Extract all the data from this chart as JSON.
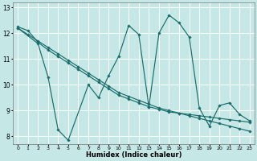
{
  "xlabel": "Humidex (Indice chaleur)",
  "bg_color": "#c5e8e6",
  "line_color": "#1a6b6a",
  "grid_color": "#ffffff",
  "xlim": [
    -0.5,
    23.5
  ],
  "ylim": [
    7.7,
    13.2
  ],
  "yticks": [
    8,
    9,
    10,
    11,
    12,
    13
  ],
  "xticks": [
    0,
    1,
    2,
    3,
    4,
    5,
    6,
    7,
    8,
    9,
    10,
    11,
    12,
    13,
    14,
    15,
    16,
    17,
    18,
    19,
    20,
    21,
    22,
    23
  ],
  "lines": [
    {
      "x": [
        0,
        1,
        2,
        3,
        4,
        5,
        6,
        7,
        8,
        9,
        10,
        11,
        12,
        13,
        14,
        15,
        16,
        17,
        18,
        19,
        20,
        21,
        22,
        23
      ],
      "y": [
        12.25,
        12.1,
        11.65,
        11.35,
        11.1,
        10.85,
        10.6,
        10.35,
        10.1,
        9.85,
        9.6,
        9.45,
        9.3,
        9.15,
        9.05,
        8.95,
        8.9,
        8.85,
        8.8,
        8.75,
        8.7,
        8.65,
        8.6,
        8.55
      ]
    },
    {
      "x": [
        0,
        1,
        2,
        3,
        4,
        5,
        6,
        7,
        8,
        9,
        10,
        11,
        12,
        13,
        14,
        15,
        16,
        17,
        18,
        19,
        20,
        21,
        22,
        23
      ],
      "y": [
        12.2,
        11.95,
        11.7,
        11.45,
        11.2,
        10.95,
        10.7,
        10.45,
        10.2,
        9.95,
        9.7,
        9.55,
        9.4,
        9.25,
        9.1,
        9.0,
        8.9,
        8.8,
        8.7,
        8.6,
        8.5,
        8.4,
        8.3,
        8.2
      ]
    },
    {
      "x": [
        0,
        2,
        3,
        4,
        5,
        7,
        8,
        9,
        10,
        11,
        12,
        13,
        14,
        15,
        16,
        17,
        18,
        19,
        20,
        21,
        22,
        23
      ],
      "y": [
        12.2,
        11.6,
        10.3,
        8.25,
        7.85,
        10.0,
        9.5,
        10.35,
        11.1,
        12.3,
        11.95,
        9.15,
        12.0,
        12.7,
        12.4,
        11.85,
        9.1,
        8.4,
        9.2,
        9.3,
        8.85,
        8.6
      ]
    }
  ]
}
